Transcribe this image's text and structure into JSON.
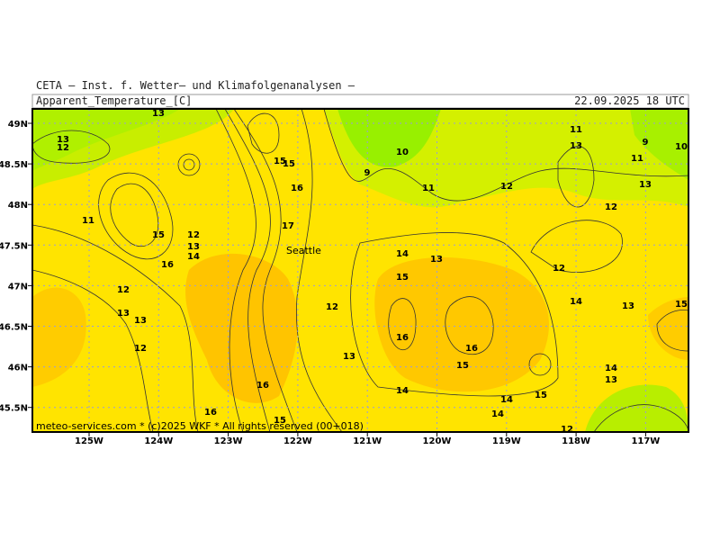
{
  "header": {
    "institute": "CETA — Inst. f. Wetter— und Klimafolgenanalysen —",
    "title": "Apparent_Temperature_[C]",
    "valid": "22.09.2025 18 UTC"
  },
  "map": {
    "lon_labels": [
      "125W",
      "124W",
      "123W",
      "122W",
      "121W",
      "120W",
      "119W",
      "118W",
      "117W"
    ],
    "lat_labels": [
      "49N",
      "48.5N",
      "48N",
      "47.5N",
      "47N",
      "46.5N",
      "46N",
      "45.5N"
    ],
    "city": "Seattle",
    "credit": "meteo-services.com * (c)2025 WKF * All rights reserved (00+018)",
    "contour_labels": [
      13,
      12,
      13,
      11,
      15,
      12,
      13,
      14,
      16,
      12,
      13,
      13,
      12,
      16,
      16,
      15,
      15,
      15,
      16,
      17,
      12,
      13,
      9,
      10,
      11,
      14,
      13,
      15,
      16,
      16,
      15,
      14,
      14,
      14,
      15,
      12,
      12,
      14,
      13,
      15,
      14,
      13,
      11,
      13,
      9,
      10,
      11,
      13,
      12,
      12
    ]
  }
}
